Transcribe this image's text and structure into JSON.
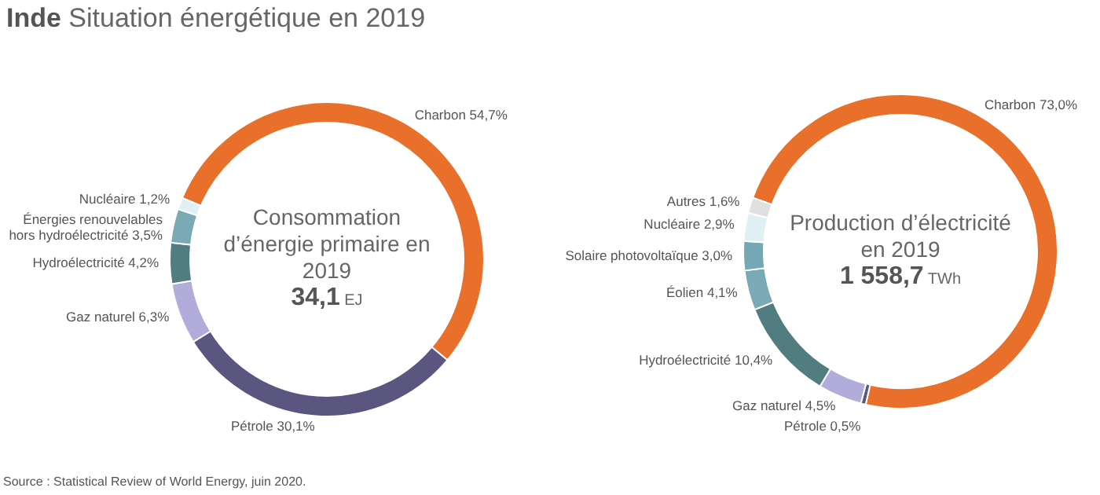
{
  "chart_data": [
    {
      "type": "donut",
      "title": "Consommation d’énergie primaire en 2019",
      "annotations": [
        "34,1 EJ"
      ],
      "legend": false,
      "value_labels": [
        "54,7%",
        "30,1%",
        "6,3%",
        "4,2%",
        "3,5%",
        "1,2%"
      ],
      "categories": [
        "Charbon",
        "Pétrole",
        "Gaz naturel",
        "Hydroélectricité",
        "Énergies renouvelables hors hydroélectricité",
        "Nucléaire"
      ],
      "values": [
        54.7,
        30.1,
        6.3,
        4.2,
        3.5,
        1.2
      ],
      "colors": [
        "#e8702a",
        "#5b5680",
        "#b1acd9",
        "#527d80",
        "#7aaab5",
        "#dff1f4"
      ]
    },
    {
      "type": "donut",
      "title": "Production d’électricité en 2019",
      "annotations": [
        "1 558,7 TWh",
        "Inde Situation énergétique en 2019",
        "Source : Statistical Review of World Energy, juin 2020."
      ],
      "legend": false,
      "value_labels": [
        "73,0%",
        "0,5%",
        "4,5%",
        "10,4%",
        "4,1%",
        "3,0%",
        "2,9%",
        "1,6%"
      ],
      "categories": [
        "Charbon",
        "Pétrole",
        "Gaz naturel",
        "Hydroélectricité",
        "Éolien",
        "Solaire photovoltaïque",
        "Nucléaire",
        "Autres"
      ],
      "values": [
        73.0,
        0.5,
        4.5,
        10.4,
        4.1,
        3.0,
        2.9,
        1.6
      ],
      "colors": [
        "#e8702a",
        "#5b5680",
        "#b1acd9",
        "#527d80",
        "#7aaab5",
        "#74a8b4",
        "#dff1f4",
        "#e0e0e0"
      ]
    }
  ]
}
